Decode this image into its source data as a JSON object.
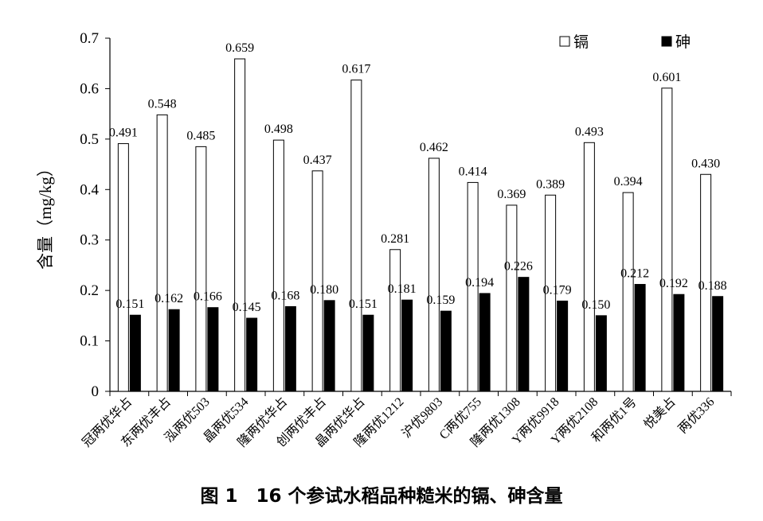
{
  "caption": "图 1　16 个参试水稻品种糙米的镉、砷含量",
  "chart_data": {
    "type": "bar",
    "ylabel": "含量（mg/kg）",
    "ylim": [
      0,
      0.7
    ],
    "yticks": [
      "0",
      "0.1",
      "0.2",
      "0.3",
      "0.4",
      "0.5",
      "0.6",
      "0.7"
    ],
    "legend_position": "top-right",
    "grid": false,
    "categories": [
      "冠两优华占",
      "东两优丰占",
      "泓两优503",
      "晶两优534",
      "隆两优华占",
      "创两优丰占",
      "晶两优华占",
      "隆两优1212",
      "沪优9803",
      "C两优755",
      "隆两优1308",
      "Y两优9918",
      "Y两优2108",
      "和两优1号",
      "悦美占",
      "两优336"
    ],
    "series": [
      {
        "name": "镉",
        "color": "#ffffff",
        "values": [
          0.491,
          0.548,
          0.485,
          0.659,
          0.498,
          0.437,
          0.617,
          0.281,
          0.462,
          0.414,
          0.369,
          0.389,
          0.493,
          0.394,
          0.601,
          0.43
        ],
        "labels": [
          "0.491",
          "0.548",
          "0.485",
          "0.659",
          "0.498",
          "0.437",
          "0.617",
          "0.281",
          "0.462",
          "0.414",
          "0.369",
          "0.389",
          "0.493",
          "0.394",
          "0.601",
          "0.430"
        ]
      },
      {
        "name": "砷",
        "color": "#000000",
        "values": [
          0.151,
          0.162,
          0.166,
          0.145,
          0.168,
          0.18,
          0.151,
          0.181,
          0.159,
          0.194,
          0.226,
          0.179,
          0.15,
          0.212,
          0.192,
          0.188
        ],
        "labels": [
          "0.151",
          "0.162",
          "0.166",
          "0.145",
          "0.168",
          "0.180",
          "0.151",
          "0.181",
          "0.159",
          "0.194",
          "0.226",
          "0.179",
          "0.150",
          "0.212",
          "0.192",
          "0.188"
        ]
      }
    ]
  }
}
